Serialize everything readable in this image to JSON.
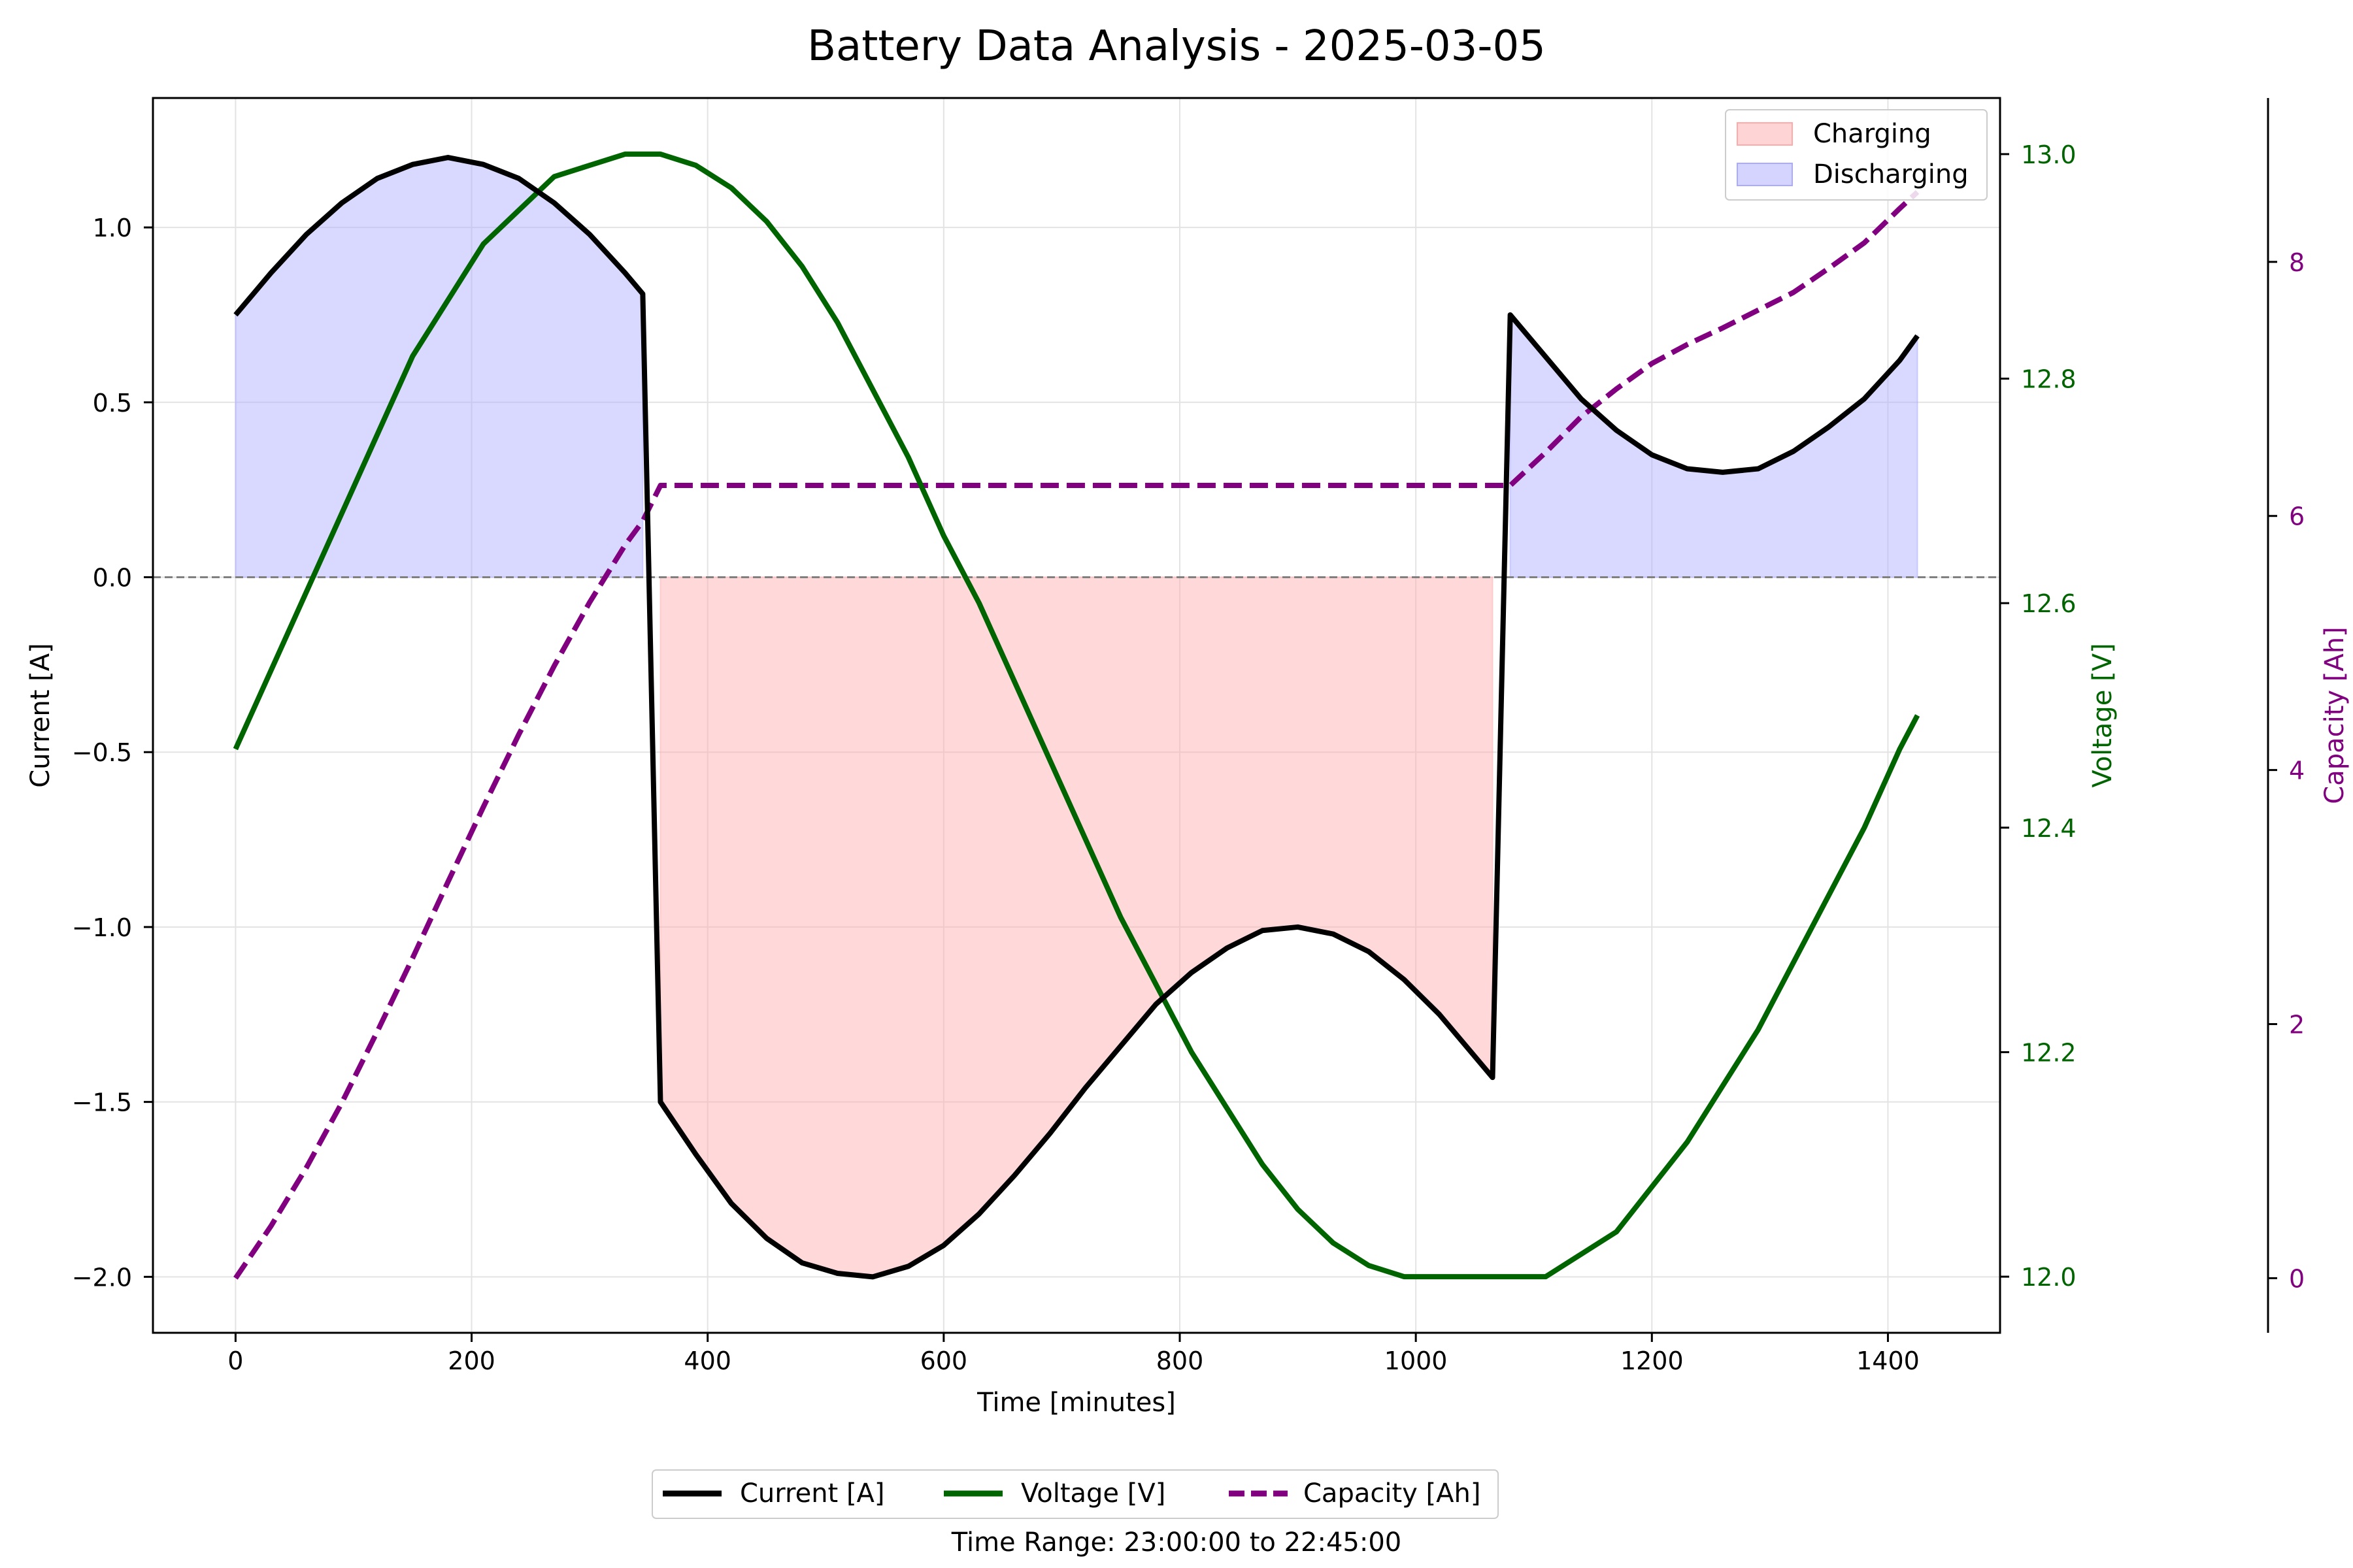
{
  "chart_data": {
    "type": "line",
    "title": "Battery Data Analysis - 2025-03-05",
    "xlabel": "Time [minutes]",
    "xlim": [
      -70,
      1495
    ],
    "x_ticks": [
      0,
      200,
      400,
      600,
      800,
      1000,
      1200,
      1400
    ],
    "grid": true,
    "axes": {
      "current": {
        "label": "Current [A]",
        "ylim": [
          -2.16,
          1.37
        ],
        "ticks": [
          1.0,
          0.5,
          0.0,
          -0.5,
          -1.0,
          -1.5,
          -2.0
        ],
        "tick_labels": [
          "1.0",
          "0.5",
          "0.0",
          "−0.5",
          "−1.0",
          "−1.5",
          "−2.0"
        ],
        "color": "#000000"
      },
      "voltage": {
        "label": "Voltage [V]",
        "ylim": [
          11.95,
          13.05
        ],
        "ticks": [
          13.0,
          12.8,
          12.6,
          12.4,
          12.2,
          12.0
        ],
        "tick_labels": [
          "13.0",
          "12.8",
          "12.6",
          "12.4",
          "12.2",
          "12.0"
        ],
        "color": "#006400"
      },
      "capacity": {
        "label": "Capacity [Ah]",
        "ylim": [
          -0.43,
          9.29
        ],
        "ticks": [
          8,
          6,
          4,
          2,
          0
        ],
        "tick_labels": [
          "8",
          "6",
          "4",
          "2",
          "0"
        ],
        "color": "#800080"
      }
    },
    "series": [
      {
        "name": "Current [A]",
        "axis": "current",
        "color": "#000000",
        "style": "solid",
        "x": [
          0,
          30,
          60,
          90,
          120,
          150,
          180,
          210,
          240,
          270,
          300,
          330,
          345,
          360,
          390,
          420,
          450,
          480,
          510,
          540,
          570,
          600,
          630,
          660,
          690,
          720,
          750,
          780,
          810,
          840,
          870,
          900,
          930,
          960,
          990,
          1020,
          1050,
          1065,
          1080,
          1110,
          1140,
          1170,
          1200,
          1230,
          1260,
          1290,
          1320,
          1350,
          1380,
          1410,
          1425
        ],
        "y": [
          0.75,
          0.87,
          0.98,
          1.07,
          1.14,
          1.18,
          1.2,
          1.18,
          1.14,
          1.07,
          0.98,
          0.87,
          0.81,
          -1.5,
          -1.65,
          -1.79,
          -1.89,
          -1.96,
          -1.99,
          -2.0,
          -1.97,
          -1.91,
          -1.82,
          -1.71,
          -1.59,
          -1.46,
          -1.34,
          -1.22,
          -1.13,
          -1.06,
          -1.01,
          -1.0,
          -1.02,
          -1.07,
          -1.15,
          -1.25,
          -1.37,
          -1.43,
          0.75,
          0.63,
          0.51,
          0.42,
          0.35,
          0.31,
          0.3,
          0.31,
          0.36,
          0.43,
          0.51,
          0.62,
          0.69
        ]
      },
      {
        "name": "Voltage [V]",
        "axis": "voltage",
        "color": "#006400",
        "style": "solid",
        "x": [
          0,
          30,
          60,
          90,
          120,
          150,
          180,
          210,
          240,
          270,
          300,
          330,
          360,
          390,
          420,
          450,
          480,
          510,
          540,
          570,
          600,
          630,
          660,
          690,
          720,
          750,
          780,
          810,
          840,
          870,
          900,
          930,
          960,
          990,
          1020,
          1050,
          1080,
          1110,
          1140,
          1170,
          1200,
          1230,
          1260,
          1290,
          1320,
          1350,
          1380,
          1410,
          1425
        ],
        "y": [
          12.47,
          12.54,
          12.61,
          12.68,
          12.75,
          12.82,
          12.87,
          12.92,
          12.95,
          12.98,
          12.99,
          13.0,
          13.0,
          12.99,
          12.97,
          12.94,
          12.9,
          12.85,
          12.79,
          12.73,
          12.66,
          12.6,
          12.53,
          12.46,
          12.39,
          12.32,
          12.26,
          12.2,
          12.15,
          12.1,
          12.06,
          12.03,
          12.01,
          12.0,
          12.0,
          12.0,
          12.0,
          12.0,
          12.02,
          12.04,
          12.08,
          12.12,
          12.17,
          12.22,
          12.28,
          12.34,
          12.4,
          12.47,
          12.5
        ]
      },
      {
        "name": "Capacity [Ah]",
        "axis": "capacity",
        "color": "#800080",
        "style": "dashed",
        "x": [
          0,
          30,
          60,
          90,
          120,
          150,
          180,
          210,
          240,
          270,
          300,
          330,
          345,
          360,
          600,
          800,
          1000,
          1065,
          1080,
          1110,
          1140,
          1170,
          1200,
          1230,
          1260,
          1290,
          1320,
          1350,
          1380,
          1410,
          1425
        ],
        "y": [
          0.0,
          0.41,
          0.87,
          1.38,
          1.94,
          2.52,
          3.12,
          3.71,
          4.28,
          4.82,
          5.32,
          5.77,
          5.96,
          6.24,
          6.24,
          6.24,
          6.24,
          6.24,
          6.24,
          6.5,
          6.78,
          7.0,
          7.2,
          7.35,
          7.48,
          7.62,
          7.76,
          7.95,
          8.15,
          8.42,
          8.55
        ]
      }
    ],
    "fills": [
      {
        "name": "Charging",
        "color": "#ffaaaa",
        "opacity": 0.45
      },
      {
        "name": "Discharging",
        "color": "#aaaaff",
        "opacity": 0.45
      }
    ],
    "legend_inner": {
      "placement": "top-right",
      "items": [
        "Charging",
        "Discharging"
      ]
    },
    "legend_outer": {
      "placement": "bottom-center",
      "items": [
        "Current [A]",
        "Voltage [V]",
        "Capacity [Ah]"
      ]
    },
    "footnote": "Time Range: 23:00:00 to 22:45:00"
  }
}
